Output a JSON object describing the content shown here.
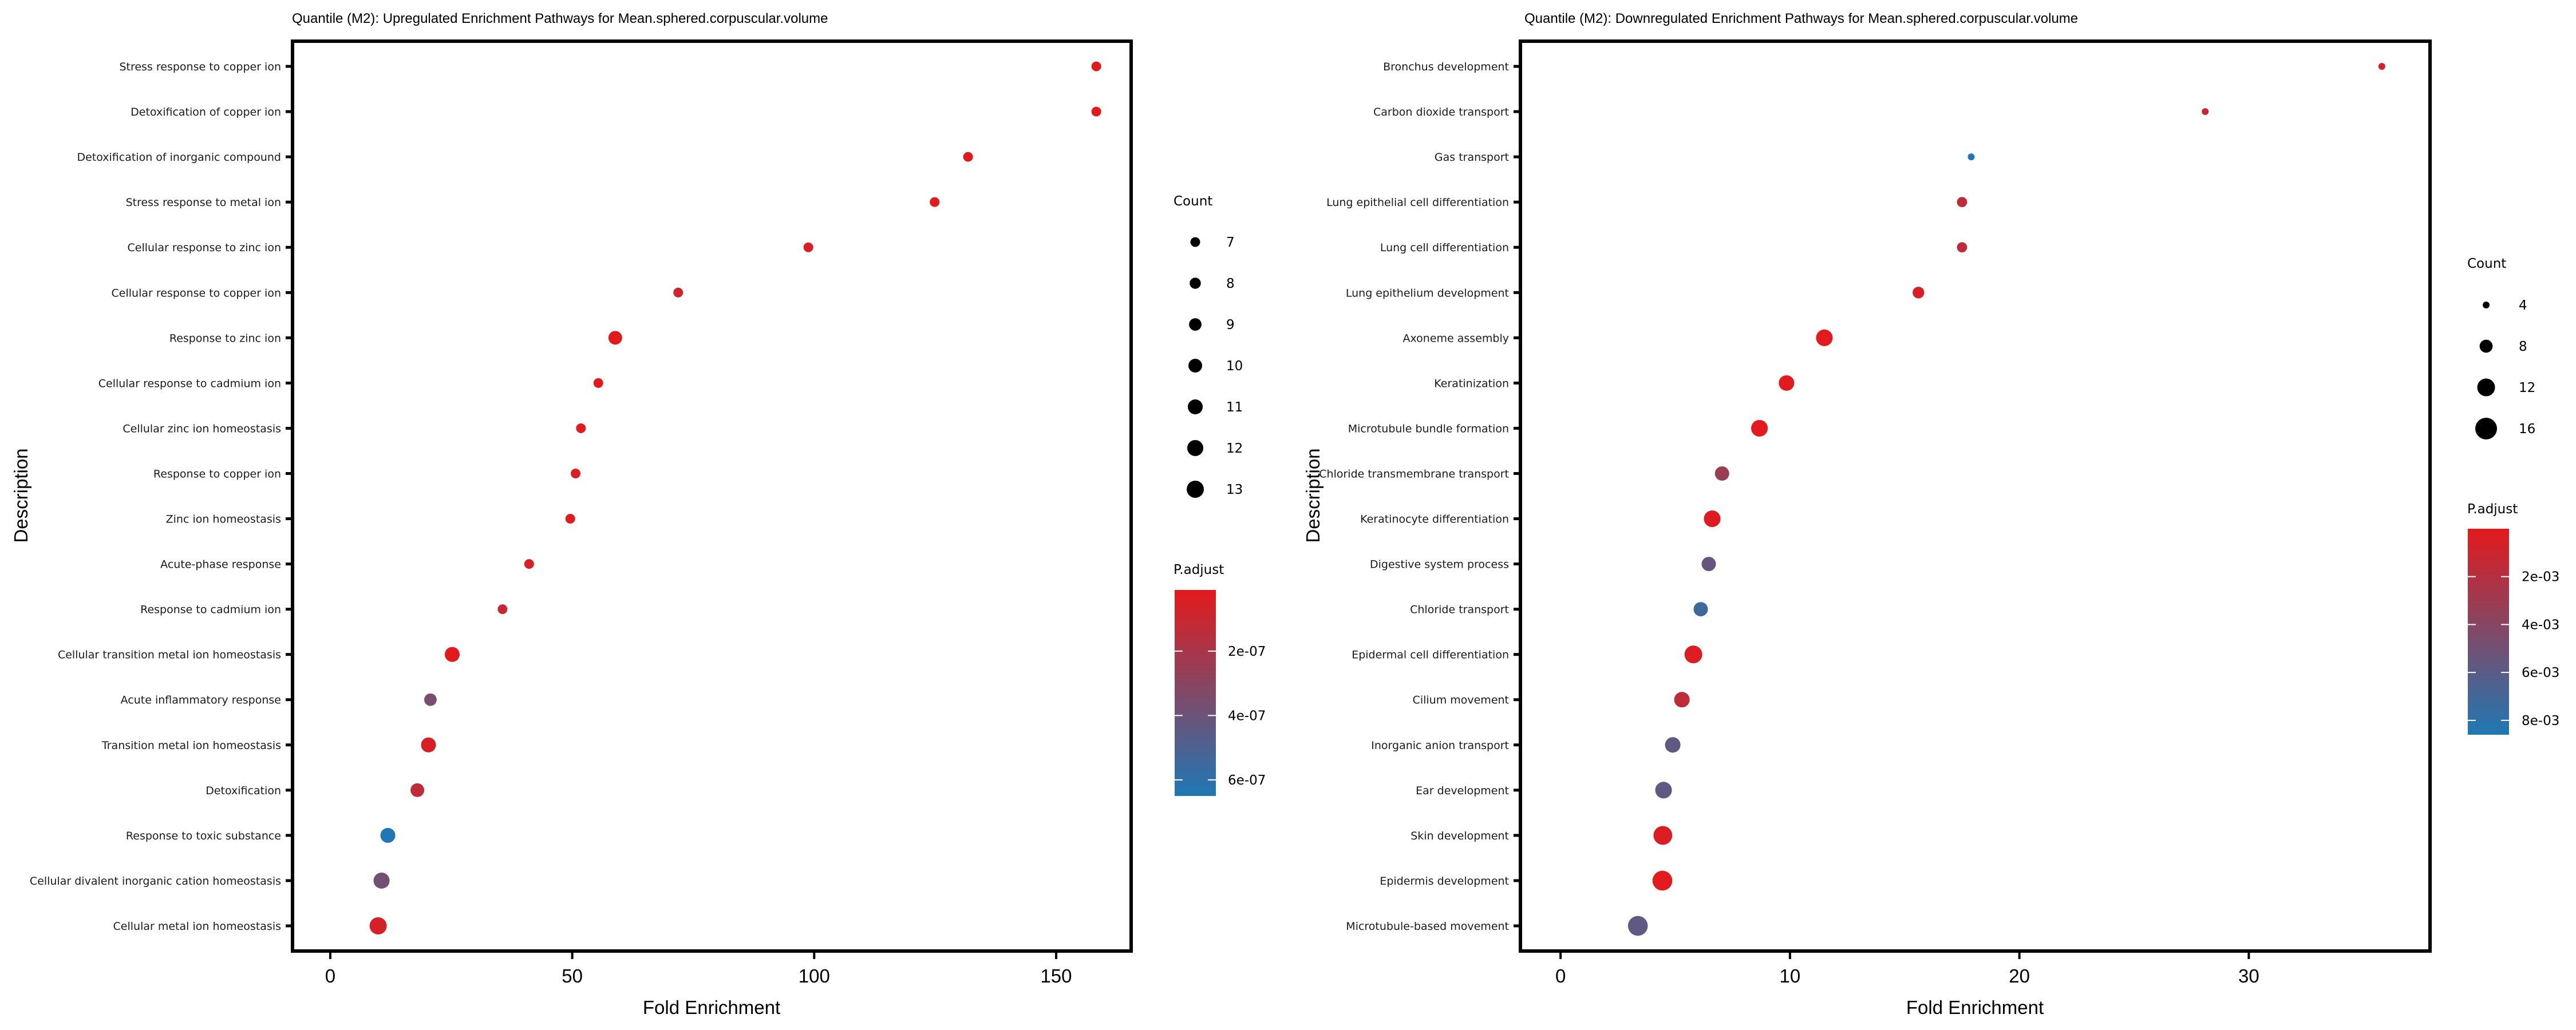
{
  "chart_data": [
    {
      "type": "scatter",
      "title": "Quantile (M2): Upregulated Enrichment Pathways for Mean.sphered.corpuscular.volume",
      "xlabel": "Fold Enrichment",
      "ylabel": "Description",
      "xlim": [
        -7.8,
        165.5
      ],
      "xticks": [
        0,
        50,
        100,
        150
      ],
      "grid": false,
      "size_legend": {
        "title": "Count",
        "values": [
          7,
          8,
          9,
          10,
          11,
          12,
          13
        ]
      },
      "color_legend": {
        "title": "P.adjust",
        "ticks": [
          "2e-07",
          "4e-07",
          "6e-07"
        ],
        "tick_values": [
          2e-07,
          4e-07,
          6e-07
        ],
        "range": [
          1e-08,
          6.5e-07
        ],
        "low_color": "#e31a1c",
        "high_color": "#1f78b4"
      },
      "points": [
        {
          "description": "Stress response to copper ion",
          "fold_enrichment": 158.3,
          "count": 7,
          "p_adjust": 1e-08
        },
        {
          "description": "Detoxification of copper ion",
          "fold_enrichment": 158.3,
          "count": 7,
          "p_adjust": 1e-08
        },
        {
          "description": "Detoxification of inorganic compound",
          "fold_enrichment": 131.8,
          "count": 7,
          "p_adjust": 1.5e-08
        },
        {
          "description": "Stress response to metal ion",
          "fold_enrichment": 124.9,
          "count": 7,
          "p_adjust": 2e-08
        },
        {
          "description": "Cellular response to zinc ion",
          "fold_enrichment": 98.8,
          "count": 7,
          "p_adjust": 4e-08
        },
        {
          "description": "Cellular response to copper ion",
          "fold_enrichment": 71.9,
          "count": 7,
          "p_adjust": 8e-08
        },
        {
          "description": "Response to zinc ion",
          "fold_enrichment": 58.9,
          "count": 10,
          "p_adjust": 1e-08
        },
        {
          "description": "Cellular response to cadmium ion",
          "fold_enrichment": 55.4,
          "count": 7,
          "p_adjust": 2e-08
        },
        {
          "description": "Cellular zinc ion homeostasis",
          "fold_enrichment": 51.8,
          "count": 7,
          "p_adjust": 2e-08
        },
        {
          "description": "Response to copper ion",
          "fold_enrichment": 50.7,
          "count": 7,
          "p_adjust": 3e-08
        },
        {
          "description": "Zinc ion homeostasis",
          "fold_enrichment": 49.6,
          "count": 7,
          "p_adjust": 3e-08
        },
        {
          "description": "Acute-phase response",
          "fold_enrichment": 41.1,
          "count": 7,
          "p_adjust": 5e-08
        },
        {
          "description": "Response to cadmium ion",
          "fold_enrichment": 35.6,
          "count": 7,
          "p_adjust": 1.1e-07
        },
        {
          "description": "Cellular transition metal ion homeostasis",
          "fold_enrichment": 25.2,
          "count": 11,
          "p_adjust": 1e-08
        },
        {
          "description": "Acute inflammatory response",
          "fold_enrichment": 20.7,
          "count": 9,
          "p_adjust": 3.6e-07
        },
        {
          "description": "Transition metal ion homeostasis",
          "fold_enrichment": 20.3,
          "count": 11,
          "p_adjust": 5e-08
        },
        {
          "description": "Detoxification",
          "fold_enrichment": 18.0,
          "count": 10,
          "p_adjust": 1.3e-07
        },
        {
          "description": "Response to toxic substance",
          "fold_enrichment": 11.9,
          "count": 11,
          "p_adjust": 6.5e-07
        },
        {
          "description": "Cellular divalent inorganic cation homeostasis",
          "fold_enrichment": 10.6,
          "count": 12,
          "p_adjust": 3.8e-07
        },
        {
          "description": "Cellular metal ion homeostasis",
          "fold_enrichment": 9.9,
          "count": 13,
          "p_adjust": 6e-08
        }
      ]
    },
    {
      "type": "scatter",
      "title": "Quantile (M2): Downregulated Enrichment Pathways for Mean.sphered.corpuscular.volume",
      "xlabel": "Fold Enrichment",
      "ylabel": "Description",
      "xlim": [
        -1.75,
        37.9
      ],
      "xticks": [
        0,
        10,
        20,
        30
      ],
      "grid": false,
      "size_legend": {
        "title": "Count",
        "values": [
          4,
          8,
          12,
          16
        ]
      },
      "color_legend": {
        "title": "P.adjust",
        "ticks": [
          "2e-03",
          "4e-03",
          "6e-03",
          "8e-03"
        ],
        "tick_values": [
          0.002,
          0.004,
          0.006,
          0.008
        ],
        "range": [
          0.0,
          0.0086
        ],
        "low_color": "#e31a1c",
        "high_color": "#1f78b4"
      },
      "points": [
        {
          "description": "Bronchus development",
          "fold_enrichment": 35.8,
          "count": 4,
          "p_adjust": 0.0006
        },
        {
          "description": "Carbon dioxide transport",
          "fold_enrichment": 28.1,
          "count": 4,
          "p_adjust": 0.0012
        },
        {
          "description": "Gas transport",
          "fold_enrichment": 17.9,
          "count": 4,
          "p_adjust": 0.0085
        },
        {
          "description": "Lung epithelial cell differentiation",
          "fold_enrichment": 17.5,
          "count": 6,
          "p_adjust": 0.0016
        },
        {
          "description": "Lung cell differentiation",
          "fold_enrichment": 17.5,
          "count": 6,
          "p_adjust": 0.0016
        },
        {
          "description": "Lung epithelium development",
          "fold_enrichment": 15.6,
          "count": 7,
          "p_adjust": 0.0005
        },
        {
          "description": "Axoneme assembly",
          "fold_enrichment": 11.5,
          "count": 11,
          "p_adjust": 0.0001
        },
        {
          "description": "Keratinization",
          "fold_enrichment": 9.85,
          "count": 10,
          "p_adjust": 0.0001
        },
        {
          "description": "Microtubule bundle formation",
          "fold_enrichment": 8.67,
          "count": 11,
          "p_adjust": 0.0001
        },
        {
          "description": "Chloride transmembrane transport",
          "fold_enrichment": 7.04,
          "count": 9,
          "p_adjust": 0.0032
        },
        {
          "description": "Keratinocyte differentiation",
          "fold_enrichment": 6.61,
          "count": 11,
          "p_adjust": 0.0002
        },
        {
          "description": "Digestive system process",
          "fold_enrichment": 6.46,
          "count": 9,
          "p_adjust": 0.0055
        },
        {
          "description": "Chloride transport",
          "fold_enrichment": 6.11,
          "count": 9,
          "p_adjust": 0.0072
        },
        {
          "description": "Epidermal cell differentiation",
          "fold_enrichment": 5.79,
          "count": 12,
          "p_adjust": 0.0003
        },
        {
          "description": "Cilium movement",
          "fold_enrichment": 5.29,
          "count": 10,
          "p_adjust": 0.0016
        },
        {
          "description": "Inorganic anion transport",
          "fold_enrichment": 4.89,
          "count": 10,
          "p_adjust": 0.0058
        },
        {
          "description": "Ear development",
          "fold_enrichment": 4.49,
          "count": 11,
          "p_adjust": 0.0058
        },
        {
          "description": "Skin development",
          "fold_enrichment": 4.46,
          "count": 13,
          "p_adjust": 0.0004
        },
        {
          "description": "Epidermis development",
          "fold_enrichment": 4.44,
          "count": 14,
          "p_adjust": 0.0001
        },
        {
          "description": "Microtubule-based movement",
          "fold_enrichment": 3.37,
          "count": 14,
          "p_adjust": 0.0058
        }
      ]
    }
  ]
}
